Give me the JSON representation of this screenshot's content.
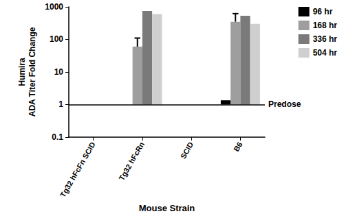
{
  "chart_data": {
    "type": "bar",
    "x_label": "Mouse Strain",
    "y_label": "Humira\nADA Titer Fold Change",
    "categories": [
      "Tg32 hFcFn SCID",
      "Tg32 hFcRn",
      "SCID",
      "B6"
    ],
    "series": [
      {
        "name": "96 hr",
        "color": "#000000",
        "values": [
          1,
          1,
          1,
          1.35
        ]
      },
      {
        "name": "168 hr",
        "color": "#9e9e9e",
        "values": [
          1,
          60,
          1,
          350
        ],
        "errors": [
          null,
          50,
          null,
          270
        ]
      },
      {
        "name": "336 hr",
        "color": "#7a7a7a",
        "values": [
          1,
          750,
          1,
          530
        ]
      },
      {
        "name": "504 hr",
        "color": "#cfcfcf",
        "values": [
          1,
          600,
          1,
          300
        ]
      }
    ],
    "ylim": [
      0.1,
      1000
    ],
    "yticks": [
      0.1,
      1,
      10,
      100,
      1000
    ],
    "log": "y",
    "grid": false,
    "legend": "top right",
    "annotations": [
      {
        "text": "Predose",
        "y": 1
      }
    ]
  }
}
